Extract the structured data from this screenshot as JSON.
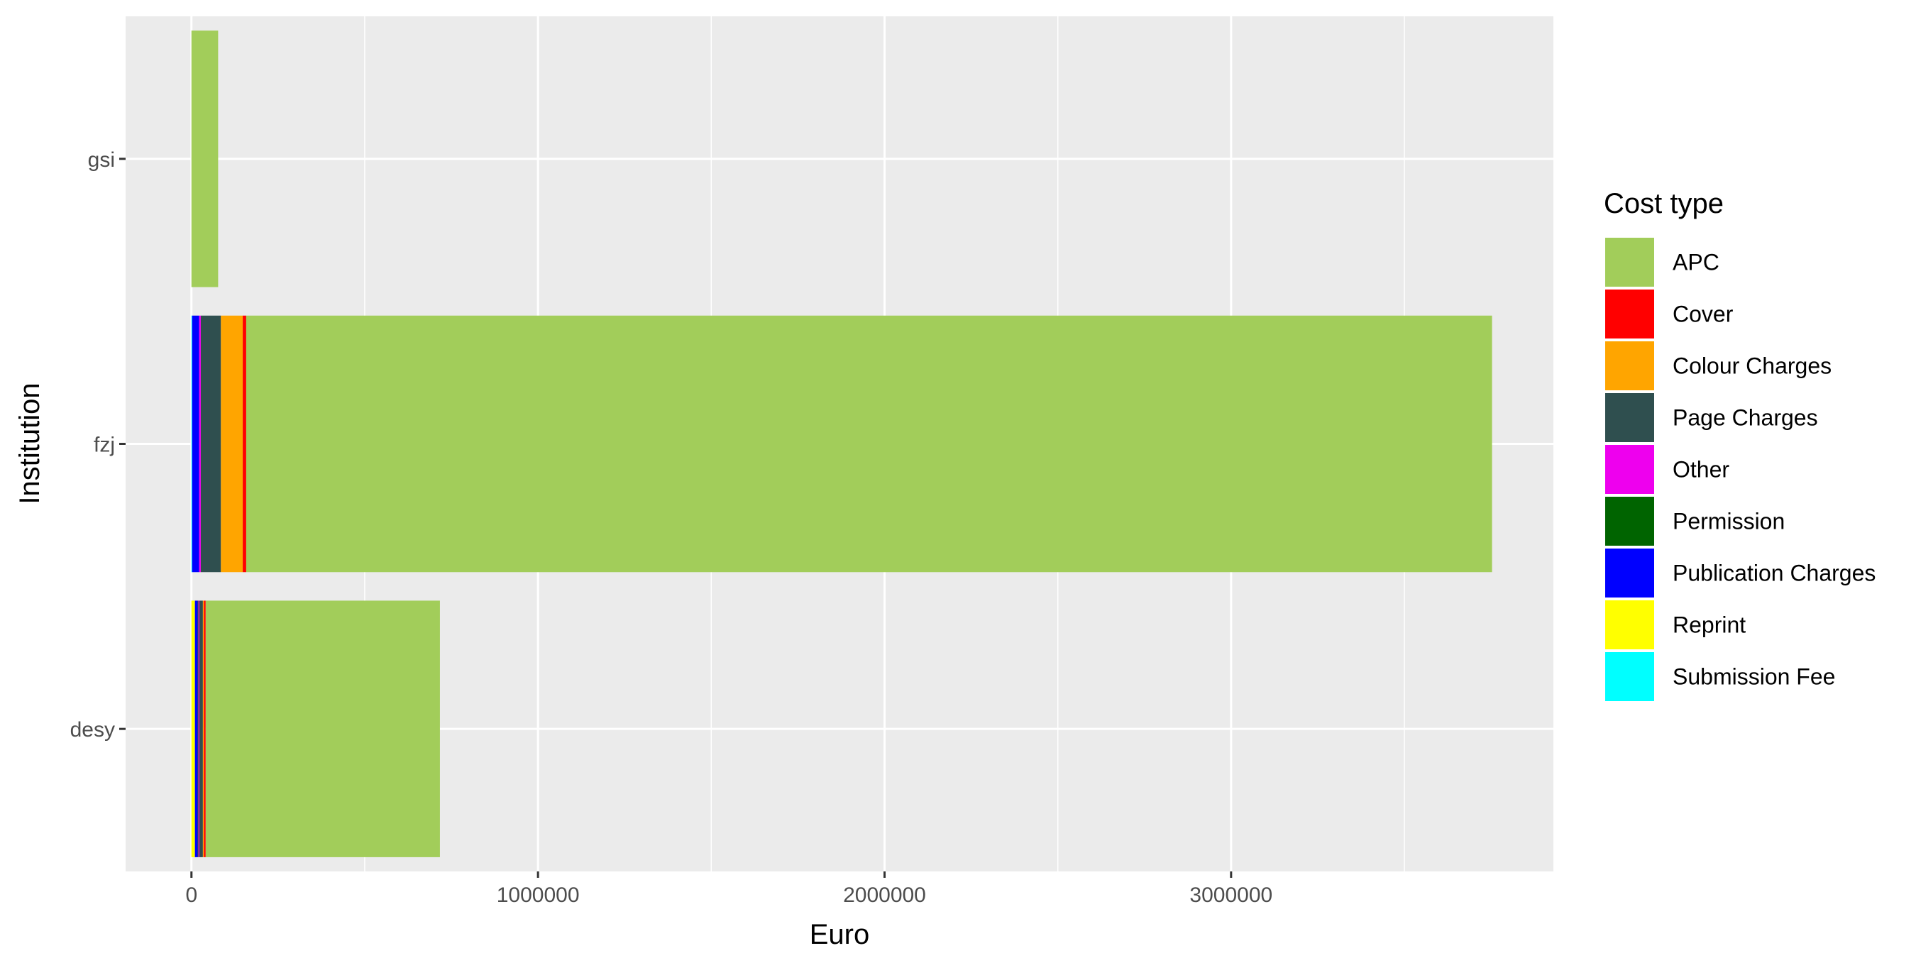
{
  "chart_data": {
    "type": "bar",
    "orientation": "horizontal",
    "stacked": true,
    "title": "",
    "xlabel": "Euro",
    "ylabel": "Institution",
    "xlim": [
      -190000,
      3930000
    ],
    "x_ticks": [
      0,
      1000000,
      2000000,
      3000000
    ],
    "x_tick_labels": [
      "0",
      "1000000",
      "2000000",
      "3000000"
    ],
    "grid": true,
    "legend_title": "Cost type",
    "legend_position": "right",
    "categories": [
      "desy",
      "fzj",
      "gsi"
    ],
    "series": [
      {
        "name": "Submission Fee",
        "color": "#00FFFF",
        "values": [
          0,
          2000,
          0
        ]
      },
      {
        "name": "Reprint",
        "color": "#FFFF00",
        "values": [
          10000,
          0,
          0
        ]
      },
      {
        "name": "Publication Charges",
        "color": "#0000FF",
        "values": [
          8000,
          20000,
          0
        ]
      },
      {
        "name": "Permission",
        "color": "#006400",
        "values": [
          2000,
          0,
          0
        ]
      },
      {
        "name": "Other",
        "color": "#EE00EE",
        "values": [
          3000,
          5000,
          0
        ]
      },
      {
        "name": "Page Charges",
        "color": "#2F4F4F",
        "values": [
          10000,
          58000,
          0
        ]
      },
      {
        "name": "Colour Charges",
        "color": "#FFA500",
        "values": [
          3000,
          63000,
          0
        ]
      },
      {
        "name": "Cover",
        "color": "#FF0000",
        "values": [
          5000,
          10000,
          0
        ]
      },
      {
        "name": "APC",
        "color": "#A2CD5A",
        "values": [
          676000,
          3595000,
          77000
        ]
      }
    ],
    "legend_order": [
      "APC",
      "Cover",
      "Colour Charges",
      "Page Charges",
      "Other",
      "Permission",
      "Publication Charges",
      "Reprint",
      "Submission Fee"
    ]
  }
}
